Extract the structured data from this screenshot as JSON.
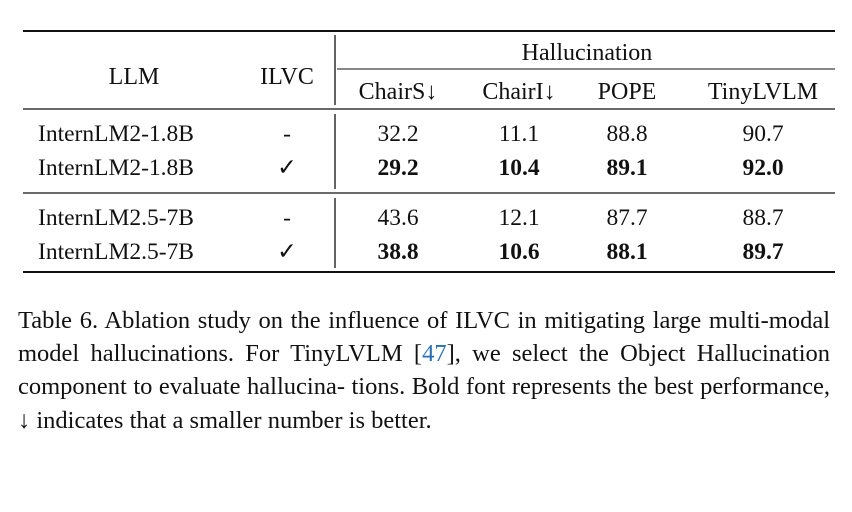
{
  "table": {
    "headers": {
      "llm": "LLM",
      "ilvc": "ILVC",
      "group": "Hallucination",
      "metrics": [
        "ChairS↓",
        "ChairI↓",
        "POPE",
        "TinyLVLM"
      ]
    },
    "groups": [
      {
        "rows": [
          {
            "llm": "InternLM2-1.8B",
            "ilvc": "-",
            "values": [
              "32.2",
              "11.1",
              "88.8",
              "90.7"
            ],
            "bold": false
          },
          {
            "llm": "InternLM2-1.8B",
            "ilvc": "✓",
            "values": [
              "29.2",
              "10.4",
              "89.1",
              "92.0"
            ],
            "bold": true
          }
        ]
      },
      {
        "rows": [
          {
            "llm": "InternLM2.5-7B",
            "ilvc": "-",
            "values": [
              "43.6",
              "12.1",
              "87.7",
              "88.7"
            ],
            "bold": false
          },
          {
            "llm": "InternLM2.5-7B",
            "ilvc": "✓",
            "values": [
              "38.8",
              "10.6",
              "88.1",
              "89.7"
            ],
            "bold": true
          }
        ]
      }
    ]
  },
  "caption": {
    "line1": "Table 6.  Ablation study on the influence of ILVC in mitigating",
    "line2_pre": "large multi-modal model hallucinations. For TinyLVLM ",
    "cite_open": "[",
    "cite_num": "47",
    "cite_close": "]",
    "line2_post": ", we",
    "line3": "select the Object Hallucination component to evaluate hallucina-",
    "line4": "tions. Bold font represents the best performance, ↓ indicates that a",
    "line5": "smaller number is better."
  }
}
